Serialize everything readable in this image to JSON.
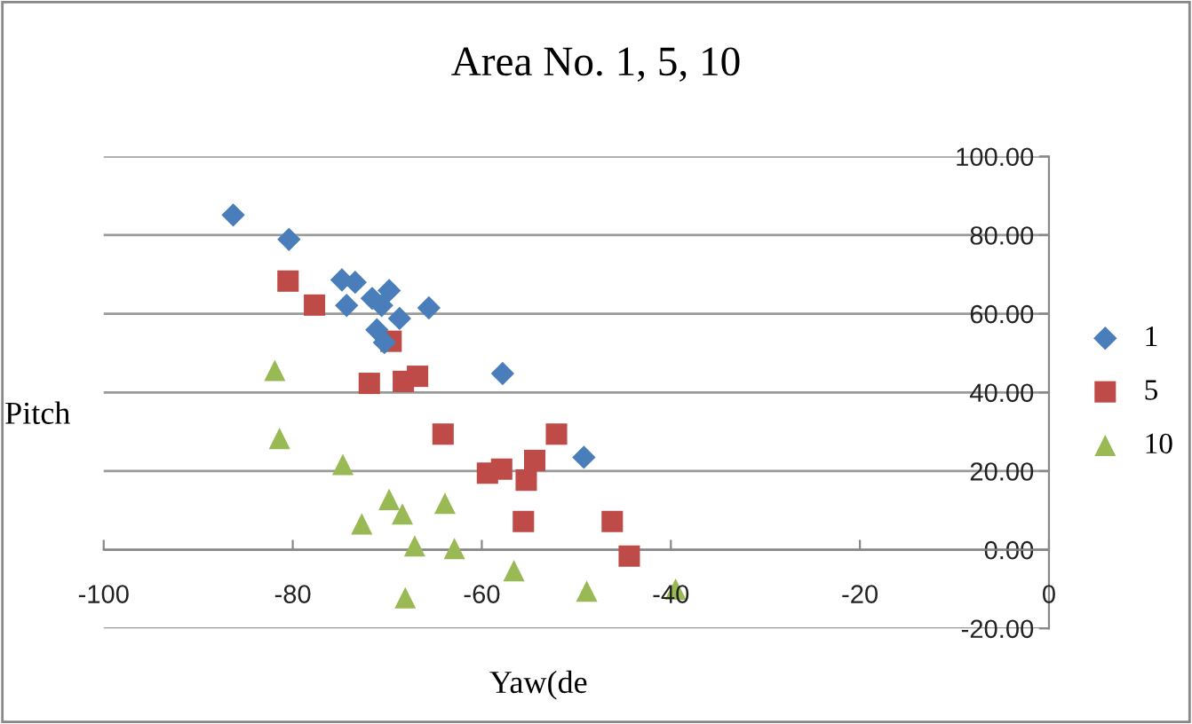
{
  "chart_data": {
    "type": "scatter",
    "title": "Area No. 1, 5, 10",
    "xlabel": "Yaw(de",
    "ylabel": "Pitch",
    "xlim": [
      -100,
      0
    ],
    "xticks": [
      -100,
      -80,
      -60,
      -40,
      -20,
      0
    ],
    "ylim": [
      -20,
      100
    ],
    "yticks": [
      {
        "value": -20,
        "label": "-20.00"
      },
      {
        "value": 0,
        "label": "0.00"
      },
      {
        "value": 20,
        "label": "20.00"
      },
      {
        "value": 40,
        "label": "40.00"
      },
      {
        "value": 60,
        "label": "60.00"
      },
      {
        "value": 80,
        "label": "80.00"
      },
      {
        "value": 100,
        "label": "100.00"
      }
    ],
    "grid": "y",
    "legend": "right",
    "series": [
      {
        "name": "1",
        "color": "#4a7ebb",
        "marker": "diamond",
        "x": [
          -86.3,
          -80.4,
          -74.8,
          -73.4,
          -74.3,
          -71.6,
          -69.8,
          -70.6,
          -68.7,
          -65.6,
          -71.1,
          -70.3,
          -57.8,
          -49.2
        ],
        "values": [
          85.1,
          78.9,
          68.6,
          68.0,
          62.1,
          63.9,
          65.9,
          62.1,
          58.8,
          61.5,
          55.9,
          52.7,
          44.8,
          23.5
        ]
      },
      {
        "name": "5",
        "color": "#be4b48",
        "marker": "square",
        "x": [
          -80.5,
          -77.7,
          -69.6,
          -71.9,
          -68.3,
          -66.8,
          -64.1,
          -52.1,
          -59.4,
          -57.9,
          -54.4,
          -55.3,
          -55.6,
          -46.2,
          -44.4
        ],
        "values": [
          68.3,
          62.2,
          53.0,
          42.3,
          42.8,
          44.1,
          29.4,
          29.4,
          19.5,
          20.5,
          22.7,
          17.7,
          7.2,
          7.2,
          -1.6
        ]
      },
      {
        "name": "10",
        "color": "#98b954",
        "marker": "triangle",
        "x": [
          -81.9,
          -81.4,
          -74.7,
          -69.8,
          -68.4,
          -72.7,
          -63.9,
          -67.1,
          -62.9,
          -68.1,
          -56.6,
          -48.9,
          -39.5
        ],
        "values": [
          45.6,
          28.3,
          21.7,
          12.8,
          9.1,
          6.6,
          11.8,
          1.0,
          0.3,
          -12.2,
          -5.3,
          -10.5,
          -10.0
        ]
      }
    ]
  }
}
